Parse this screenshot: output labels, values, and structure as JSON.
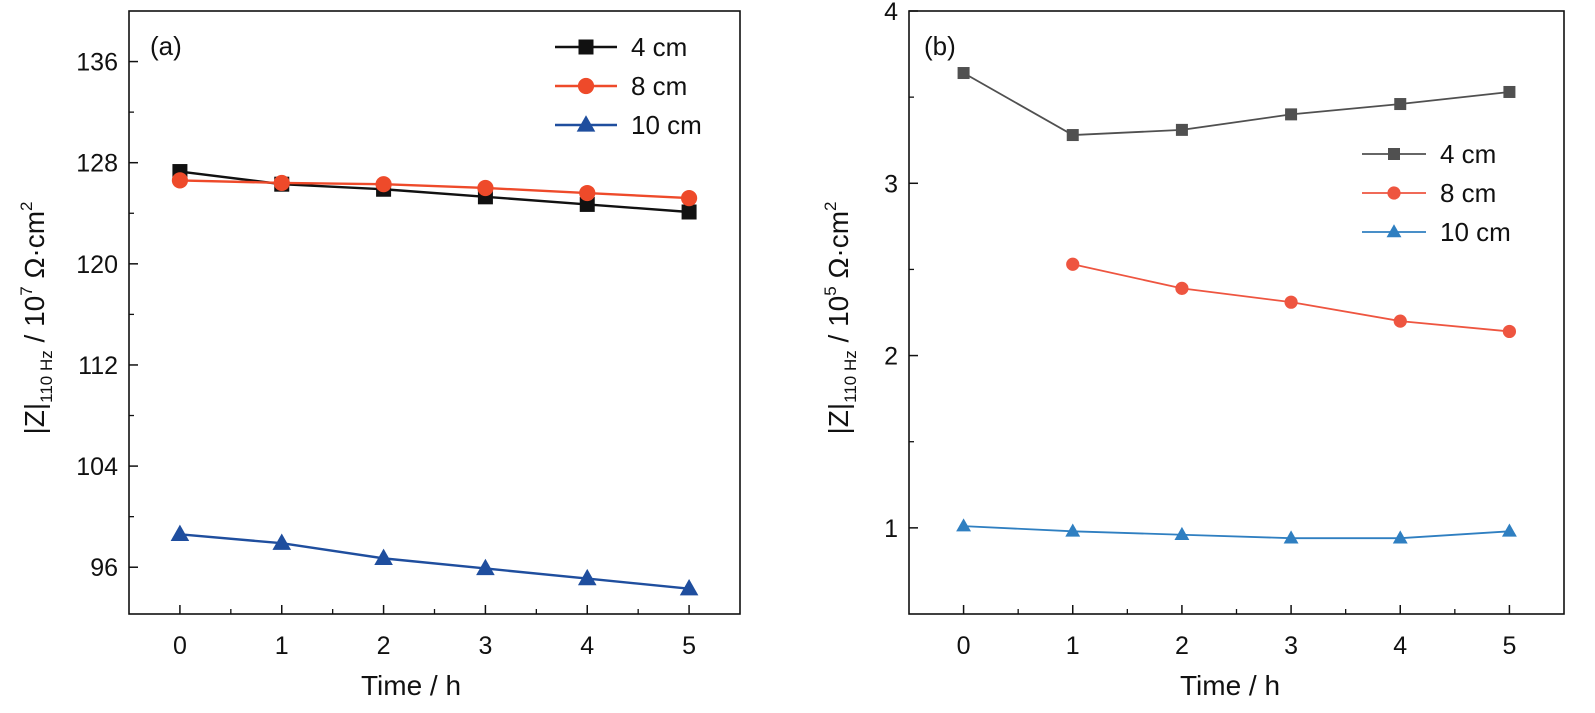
{
  "chart_data": [
    {
      "type": "line",
      "panel_label": "(a)",
      "xlabel": "Time / h",
      "ylabel": {
        "prefix": "|Z|",
        "sub": "110 Hz",
        "mid": " / 10",
        "sup": "7",
        "unit": " Ω·cm",
        "sup2": "2"
      },
      "x": [
        0,
        1,
        2,
        3,
        4,
        5
      ],
      "xlim": [
        -0.5,
        5.5
      ],
      "ylim": [
        92.3,
        140
      ],
      "yticks": [
        96,
        104,
        112,
        120,
        128,
        136
      ],
      "legend_position": "top-right",
      "series": [
        {
          "name": "4 cm",
          "color": "#111111",
          "marker": "square",
          "values": [
            127.3,
            126.3,
            125.9,
            125.3,
            124.7,
            124.1
          ]
        },
        {
          "name": "8 cm",
          "color": "#ee4a2a",
          "marker": "circle",
          "values": [
            126.6,
            126.4,
            126.3,
            126.0,
            125.6,
            125.2
          ]
        },
        {
          "name": "10 cm",
          "color": "#1f4e9e",
          "marker": "triangle",
          "values": [
            98.6,
            97.9,
            96.7,
            95.9,
            95.1,
            94.3
          ]
        }
      ]
    },
    {
      "type": "line",
      "panel_label": "(b)",
      "xlabel": "Time / h",
      "ylabel": {
        "prefix": "|Z|",
        "sub": "110 Hz",
        "mid": " / 10",
        "sup": "5",
        "unit": " Ω·cm",
        "sup2": "2"
      },
      "x": [
        0,
        1,
        2,
        3,
        4,
        5
      ],
      "xlim": [
        -0.5,
        5.5
      ],
      "ylim": [
        0.5,
        4.0
      ],
      "yticks": [
        1,
        2,
        3,
        4
      ],
      "legend_position": "right",
      "series": [
        {
          "name": "4 cm",
          "color": "#505050",
          "marker": "square",
          "x": [
            0,
            1,
            2,
            3,
            4,
            5
          ],
          "values": [
            3.64,
            3.28,
            3.31,
            3.4,
            3.46,
            3.53
          ]
        },
        {
          "name": "8 cm",
          "color": "#ee5540",
          "marker": "circle",
          "x": [
            1,
            2,
            3,
            4,
            5
          ],
          "values": [
            2.53,
            2.39,
            2.31,
            2.2,
            2.14
          ]
        },
        {
          "name": "10 cm",
          "color": "#2f7fc1",
          "marker": "triangle",
          "x": [
            0,
            1,
            2,
            3,
            4,
            5
          ],
          "values": [
            1.01,
            0.98,
            0.96,
            0.94,
            0.94,
            0.98
          ]
        }
      ]
    }
  ]
}
